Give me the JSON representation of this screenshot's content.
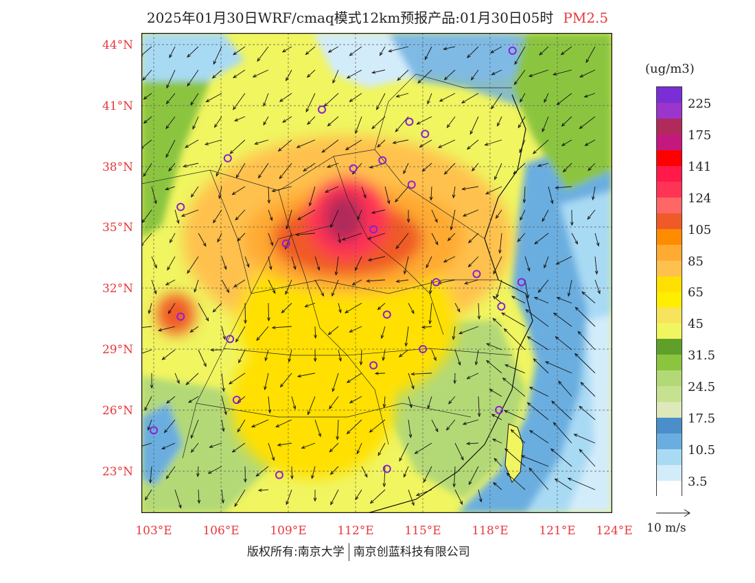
{
  "title": {
    "main": "2025年01月30日WRF/cmaq模式12km预报产品:01月30日05时",
    "pollutant": "PM2.5"
  },
  "axes": {
    "lat_labels": [
      "44°N",
      "41°N",
      "38°N",
      "35°N",
      "32°N",
      "29°N",
      "26°N",
      "23°N"
    ],
    "lon_labels": [
      "103°E",
      "106°E",
      "109°E",
      "112°E",
      "115°E",
      "118°E",
      "121°E",
      "124°E"
    ]
  },
  "colorbar": {
    "unit": "(ug/m3)",
    "colors": [
      "#7a2fd6",
      "#9c35cc",
      "#b02a5a",
      "#c4187f",
      "#ff0000",
      "#ff1a4a",
      "#ff3355",
      "#ff6666",
      "#f05a28",
      "#ff8c00",
      "#ffaa33",
      "#ffc14d",
      "#ffe000",
      "#ffee00",
      "#f7e35c",
      "#f0f560",
      "#5fa02b",
      "#8bc540",
      "#b3d977",
      "#c6e190",
      "#dde9bb",
      "#4a8fc9",
      "#6aaee0",
      "#a9daf4",
      "#d3ecfa",
      "#ffffff"
    ],
    "labels": [
      "225",
      "175",
      "141",
      "124",
      "105",
      "85",
      "65",
      "45",
      "31.5",
      "24.5",
      "17.5",
      "10.5",
      "3.5"
    ]
  },
  "wind_legend": {
    "label": "10 m/s"
  },
  "footer": {
    "left": "版权所有:南京大学",
    "right": "南京创蓝科技有限公司"
  },
  "stations": [
    {
      "lon": 119.0,
      "lat": 43.7
    },
    {
      "lon": 110.5,
      "lat": 40.8
    },
    {
      "lon": 114.4,
      "lat": 40.2
    },
    {
      "lon": 115.1,
      "lat": 39.6
    },
    {
      "lon": 106.3,
      "lat": 38.4
    },
    {
      "lon": 111.9,
      "lat": 37.9
    },
    {
      "lon": 113.2,
      "lat": 38.3
    },
    {
      "lon": 114.5,
      "lat": 37.1
    },
    {
      "lon": 104.2,
      "lat": 36.0
    },
    {
      "lon": 112.8,
      "lat": 34.9
    },
    {
      "lon": 108.9,
      "lat": 34.2
    },
    {
      "lon": 117.4,
      "lat": 32.7
    },
    {
      "lon": 115.6,
      "lat": 32.3
    },
    {
      "lon": 119.4,
      "lat": 32.3
    },
    {
      "lon": 118.5,
      "lat": 31.1
    },
    {
      "lon": 104.2,
      "lat": 30.6
    },
    {
      "lon": 113.4,
      "lat": 30.7
    },
    {
      "lon": 106.4,
      "lat": 29.5
    },
    {
      "lon": 115.0,
      "lat": 29.0
    },
    {
      "lon": 112.8,
      "lat": 28.2
    },
    {
      "lon": 106.7,
      "lat": 26.5
    },
    {
      "lon": 118.4,
      "lat": 26.0
    },
    {
      "lon": 103.0,
      "lat": 25.0
    },
    {
      "lon": 108.6,
      "lat": 22.8
    },
    {
      "lon": 113.4,
      "lat": 23.1
    }
  ]
}
